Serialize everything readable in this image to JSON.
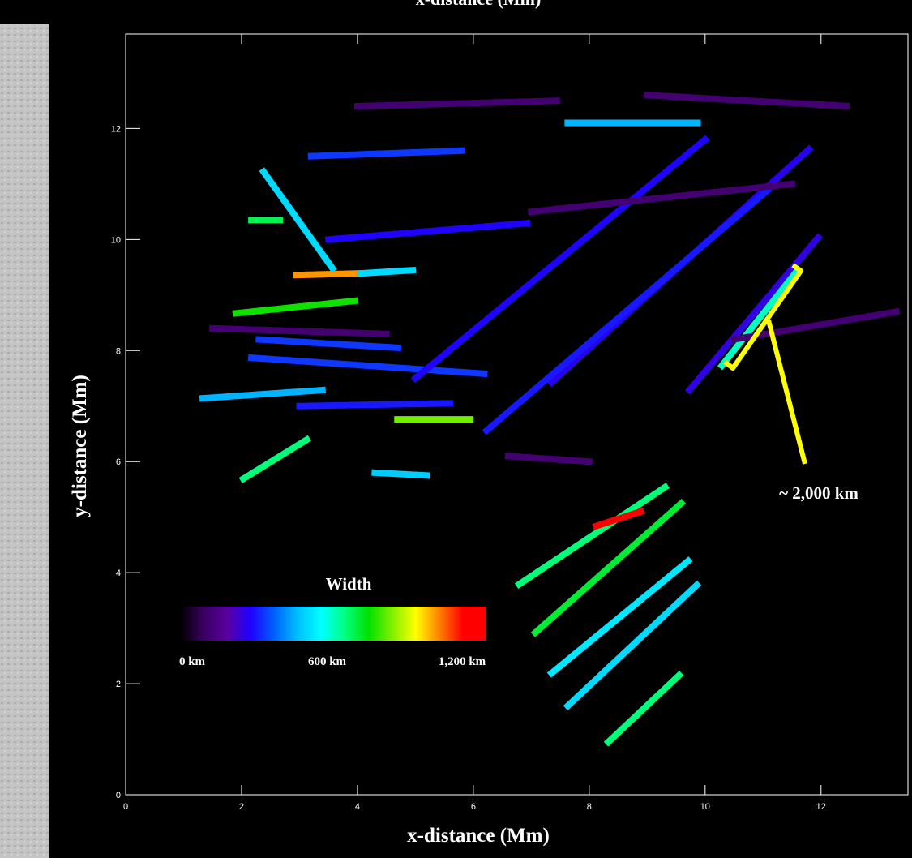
{
  "chart_data": {
    "type": "strand-map",
    "xlabel": "x-distance (Mm)",
    "ylabel": "y-distance (Mm)",
    "xlim": [
      0,
      13.5
    ],
    "ylim": [
      0,
      13.7
    ],
    "xticks": [
      0,
      2,
      4,
      6,
      8,
      10,
      12
    ],
    "yticks": [
      0,
      2,
      4,
      6,
      8,
      10,
      12
    ],
    "colorbar": {
      "title": "Width",
      "clim": [
        0,
        1200
      ],
      "ticks": [
        {
          "value": 0,
          "label": "0 km"
        },
        {
          "value": 600,
          "label": "600 km"
        },
        {
          "value": 1200,
          "label": "1,200 km"
        }
      ],
      "colormap": [
        "#000000",
        "#3a0060",
        "#5a00a0",
        "#2000ff",
        "#0060ff",
        "#00c0ff",
        "#00ffff",
        "#00ff80",
        "#00e000",
        "#80f000",
        "#ffff00",
        "#ff8000",
        "#ff0000",
        "#ff0000"
      ]
    },
    "strands": [
      {
        "x": [
          1.9,
          4.0
        ],
        "y": [
          8.67,
          8.9
        ],
        "width": 750
      },
      {
        "x": [
          2.94,
          4.06
        ],
        "y": [
          9.36,
          9.39
        ],
        "width": 1000
      },
      {
        "x": [
          4.06,
          5.0
        ],
        "y": [
          9.39,
          9.45
        ],
        "width": 500
      },
      {
        "x": [
          2.17,
          6.23
        ],
        "y": [
          7.87,
          7.58
        ],
        "width": 330
      },
      {
        "x": [
          4.69,
          5.95
        ],
        "y": [
          6.76,
          6.76
        ],
        "width": 820
      },
      {
        "x": [
          1.33,
          3.43
        ],
        "y": [
          7.14,
          7.29
        ],
        "width": 450
      },
      {
        "x": [
          3.0,
          5.6
        ],
        "y": [
          7.0,
          7.05
        ],
        "width": 300
      },
      {
        "x": [
          2.3,
          4.7
        ],
        "y": [
          8.2,
          8.05
        ],
        "width": 330
      },
      {
        "x": [
          6.79,
          9.31
        ],
        "y": [
          3.79,
          5.54
        ],
        "width": 650
      },
      {
        "x": [
          8.12,
          8.89
        ],
        "y": [
          4.84,
          5.1
        ],
        "width": 1150
      },
      {
        "x": [
          7.07,
          9.59
        ],
        "y": [
          2.92,
          5.25
        ],
        "width": 700
      },
      {
        "x": [
          7.35,
          9.73
        ],
        "y": [
          2.19,
          4.23
        ],
        "width": 520
      },
      {
        "x": [
          7.63,
          9.87
        ],
        "y": [
          1.6,
          3.79
        ],
        "width": 500
      },
      {
        "x": [
          8.33,
          9.59
        ],
        "y": [
          0.95,
          2.19
        ],
        "width": 650
      },
      {
        "x": [
          9.73,
          11.97
        ],
        "y": [
          7.29,
          10.06
        ],
        "width": 250
      },
      {
        "x": [
          10.29,
          11.62
        ],
        "y": [
          7.73,
          9.48
        ],
        "width": 600
      },
      {
        "x": [
          7.35,
          11.83
        ],
        "y": [
          7.43,
          11.66
        ],
        "width": 260
      },
      {
        "x": [
          6.23,
          11.13
        ],
        "y": [
          6.56,
          10.93
        ],
        "width": 300
      },
      {
        "x": [
          5.0,
          10.0
        ],
        "y": [
          7.5,
          11.8
        ],
        "width": 280
      },
      {
        "x": [
          7.63,
          9.87
        ],
        "y": [
          12.1,
          12.1
        ],
        "width": 450
      },
      {
        "x": [
          2.38,
          3.57
        ],
        "y": [
          11.22,
          9.48
        ],
        "width": 500
      },
      {
        "x": [
          3.2,
          5.8
        ],
        "y": [
          11.5,
          11.6
        ],
        "width": 330
      },
      {
        "x": [
          2.03,
          3.15
        ],
        "y": [
          5.69,
          6.41
        ],
        "width": 650
      },
      {
        "x": [
          2.17,
          2.66
        ],
        "y": [
          10.35,
          10.35
        ],
        "width": 680
      },
      {
        "x": [
          4.3,
          5.2
        ],
        "y": [
          5.8,
          5.75
        ],
        "width": 480
      },
      {
        "x": [
          3.5,
          7.0
        ],
        "y": [
          10.0,
          10.3
        ],
        "width": 280
      },
      {
        "x": [
          4.0,
          7.5
        ],
        "y": [
          12.4,
          12.5
        ],
        "width": 120
      },
      {
        "x": [
          9.0,
          12.5
        ],
        "y": [
          12.6,
          12.4
        ],
        "width": 120
      },
      {
        "x": [
          7.0,
          11.5
        ],
        "y": [
          10.5,
          11.0
        ],
        "width": 120
      },
      {
        "x": [
          10.5,
          13.3
        ],
        "y": [
          8.2,
          8.7
        ],
        "width": 120
      },
      {
        "x": [
          1.5,
          4.5
        ],
        "y": [
          8.4,
          8.3
        ],
        "width": 120
      },
      {
        "x": [
          6.6,
          8.0
        ],
        "y": [
          6.1,
          6.0
        ],
        "width": 120
      }
    ],
    "annotation": "~ 2,000 km"
  }
}
